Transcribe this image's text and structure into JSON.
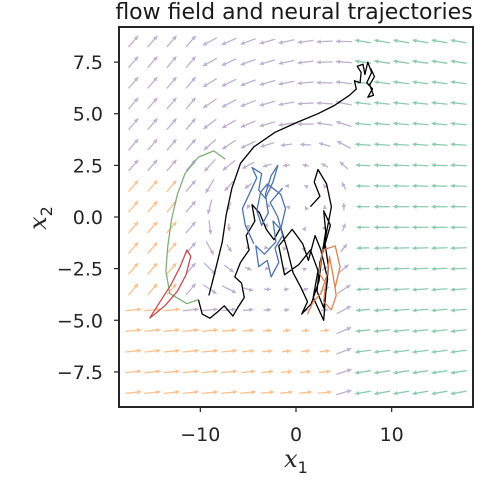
{
  "chart_data": {
    "type": "quiver_trajectory",
    "title": "flow field and neural trajectories",
    "xlabel": "x1",
    "xlabel_main": "x",
    "xlabel_sub": "1",
    "ylabel": "x2",
    "ylabel_main": "x",
    "ylabel_sub": "2",
    "xlim": [
      -18.5,
      18.5
    ],
    "ylim": [
      -9.2,
      9.2
    ],
    "xticks": [
      -10,
      0,
      10
    ],
    "xtick_labels": [
      "−10",
      "0",
      "10"
    ],
    "yticks": [
      7.5,
      5.0,
      2.5,
      0.0,
      -2.5,
      -5.0,
      -7.5
    ],
    "ytick_labels": [
      "7.5",
      "5.0",
      "2.5",
      "0.0",
      "−2.5",
      "−5.0",
      "−7.5"
    ],
    "grid": false,
    "flow_field": {
      "x_range": [
        -17,
        17
      ],
      "y_range": [
        -8.5,
        8.5
      ],
      "n_x": 18,
      "n_y": 18,
      "region_colors": {
        "teal": "#8ccbb0",
        "purple": "#bfb0d0",
        "orange": "#fcc08d"
      }
    },
    "trajectories": [
      {
        "color": "#000000",
        "points": [
          [
            -10.2,
            -4.0
          ],
          [
            -9.8,
            -4.7
          ],
          [
            -9.0,
            -4.9
          ],
          [
            -8.2,
            -4.6
          ],
          [
            -7.5,
            -4.3
          ],
          [
            -6.6,
            -4.8
          ],
          [
            -6.1,
            -4.4
          ],
          [
            -5.4,
            -3.9
          ],
          [
            -5.7,
            -3.2
          ],
          [
            -6.4,
            -2.9
          ],
          [
            -5.8,
            -2.2
          ],
          [
            -4.9,
            -1.6
          ],
          [
            -5.2,
            -0.9
          ],
          [
            -4.3,
            -0.2
          ],
          [
            -4.6,
            0.6
          ],
          [
            -3.8,
            0.2
          ],
          [
            -3.1,
            -0.6
          ],
          [
            -2.3,
            -1.1
          ],
          [
            -1.6,
            -0.5
          ],
          [
            -0.9,
            -1.6
          ],
          [
            -0.3,
            -2.7
          ],
          [
            0.5,
            -3.4
          ],
          [
            1.2,
            -4.1
          ],
          [
            0.6,
            -4.7
          ],
          [
            1.6,
            -4.2
          ],
          [
            2.4,
            -3.1
          ],
          [
            2.7,
            -1.9
          ],
          [
            3.1,
            -0.7
          ],
          [
            2.9,
            0.3
          ],
          [
            3.6,
            -0.4
          ],
          [
            2.5,
            -2.2
          ],
          [
            2.2,
            -3.6
          ],
          [
            2.9,
            -4.4
          ],
          [
            3.3,
            -3.0
          ],
          [
            2.6,
            -1.6
          ],
          [
            2.0,
            -0.9
          ],
          [
            1.3,
            -2.1
          ],
          [
            0.7,
            -1.3
          ],
          [
            -0.4,
            -0.6
          ],
          [
            -1.8,
            -1.4
          ],
          [
            -1.2,
            -2.8
          ],
          [
            0.3,
            -2.3
          ],
          [
            1.5,
            -1.6
          ],
          [
            2.3,
            -2.6
          ],
          [
            1.8,
            -3.9
          ],
          [
            2.9,
            -5.0
          ],
          [
            3.1,
            -3.7
          ],
          [
            3.4,
            -2.4
          ],
          [
            3.0,
            -1.2
          ],
          [
            3.7,
            0.5
          ],
          [
            3.2,
            1.6
          ],
          [
            2.3,
            2.3
          ],
          [
            1.9,
            1.7
          ],
          [
            2.5,
            1.0
          ],
          [
            1.5,
            0.5
          ]
        ]
      },
      {
        "color": "#000000",
        "points": [
          [
            -9.1,
            -3.8
          ],
          [
            -8.5,
            -2.7
          ],
          [
            -7.7,
            -1.2
          ],
          [
            -7.3,
            0.1
          ],
          [
            -6.7,
            1.4
          ],
          [
            -5.8,
            2.6
          ],
          [
            -4.4,
            3.4
          ],
          [
            -2.2,
            4.1
          ],
          [
            0.2,
            4.6
          ],
          [
            2.3,
            5.0
          ],
          [
            4.0,
            5.4
          ],
          [
            5.6,
            5.9
          ],
          [
            6.3,
            6.2
          ],
          [
            6.1,
            6.6
          ],
          [
            6.7,
            6.5
          ],
          [
            6.8,
            7.0
          ],
          [
            6.4,
            7.3
          ],
          [
            7.0,
            7.4
          ],
          [
            7.2,
            6.9
          ],
          [
            7.5,
            7.5
          ],
          [
            7.9,
            7.0
          ],
          [
            7.4,
            6.5
          ],
          [
            8.0,
            6.2
          ],
          [
            7.5,
            5.8
          ],
          [
            8.1,
            5.9
          ],
          [
            7.7,
            6.4
          ],
          [
            8.2,
            6.8
          ],
          [
            7.8,
            7.2
          ]
        ]
      },
      {
        "color": "#4c72b0",
        "points": [
          [
            -4.4,
            -1.3
          ],
          [
            -5.3,
            -0.4
          ],
          [
            -5.6,
            0.4
          ],
          [
            -4.8,
            1.2
          ],
          [
            -4.1,
            1.9
          ],
          [
            -4.6,
            2.4
          ],
          [
            -3.6,
            2.1
          ],
          [
            -3.9,
            1.3
          ],
          [
            -3.2,
            0.9
          ],
          [
            -2.4,
            1.7
          ],
          [
            -1.9,
            2.5
          ],
          [
            -2.6,
            2.0
          ],
          [
            -3.2,
            1.1
          ],
          [
            -2.9,
            0.2
          ],
          [
            -3.6,
            -0.4
          ],
          [
            -4.1,
            0.3
          ],
          [
            -3.7,
            1.2
          ],
          [
            -3.0,
            1.6
          ],
          [
            -1.6,
            1.1
          ],
          [
            -1.1,
            0.4
          ],
          [
            -1.6,
            -0.6
          ],
          [
            -2.4,
            -0.2
          ],
          [
            -2.1,
            -1.2
          ],
          [
            -3.3,
            -1.8
          ],
          [
            -4.2,
            -1.4
          ],
          [
            -3.9,
            -2.4
          ],
          [
            -3.0,
            -2.1
          ],
          [
            -2.6,
            -2.9
          ],
          [
            -1.8,
            -2.2
          ],
          [
            -2.2,
            -1.5
          ],
          [
            -1.4,
            -0.9
          ],
          [
            -1.9,
            0.0
          ],
          [
            -2.7,
            0.7
          ],
          [
            -1.4,
            1.4
          ]
        ]
      },
      {
        "color": "#7eb07a",
        "points": [
          [
            -10.2,
            -4.0
          ],
          [
            -11.4,
            -4.2
          ],
          [
            -13.2,
            -3.7
          ],
          [
            -13.6,
            -2.6
          ],
          [
            -13.4,
            -1.4
          ],
          [
            -13.0,
            -0.1
          ],
          [
            -12.4,
            1.1
          ],
          [
            -11.6,
            2.1
          ],
          [
            -10.2,
            2.9
          ],
          [
            -8.6,
            3.2
          ],
          [
            -7.4,
            2.8
          ]
        ]
      },
      {
        "color": "#dd8452",
        "points": [
          [
            1.2,
            -4.7
          ],
          [
            1.8,
            -4.1
          ],
          [
            2.6,
            -3.7
          ],
          [
            3.3,
            -2.7
          ],
          [
            3.5,
            -1.9
          ],
          [
            3.9,
            -2.9
          ],
          [
            4.2,
            -3.8
          ],
          [
            3.7,
            -4.5
          ],
          [
            2.9,
            -4.1
          ],
          [
            3.1,
            -3.2
          ],
          [
            2.4,
            -2.7
          ],
          [
            2.8,
            -1.6
          ],
          [
            4.1,
            -1.4
          ],
          [
            4.6,
            -2.4
          ],
          [
            4.1,
            -3.4
          ]
        ]
      },
      {
        "color": "#c44e52",
        "points": [
          [
            -15.3,
            -4.9
          ],
          [
            -14.2,
            -4.1
          ],
          [
            -13.1,
            -3.3
          ],
          [
            -12.1,
            -2.4
          ],
          [
            -11.4,
            -1.6
          ],
          [
            -11.0,
            -1.9
          ],
          [
            -11.5,
            -2.8
          ],
          [
            -12.4,
            -3.6
          ],
          [
            -13.7,
            -4.3
          ],
          [
            -15.3,
            -4.9
          ]
        ]
      }
    ]
  }
}
